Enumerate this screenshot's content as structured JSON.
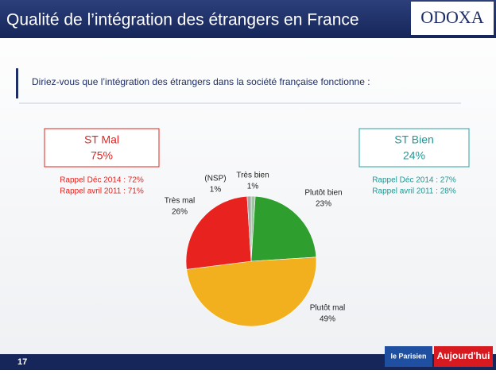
{
  "header": {
    "title": "Qualité de l’intégration des étrangers en France",
    "logo": "ODOXA"
  },
  "question": "Diriez-vous que l’intégration des étrangers dans la société française fonctionne :",
  "st_mal": {
    "label": "ST Mal",
    "value": "75%",
    "recalls": [
      "Rappel Déc 2014 : 72%",
      "Rappel avril 2011 : 71%"
    ]
  },
  "st_bien": {
    "label": "ST Bien",
    "value": "24%",
    "recalls": [
      "Rappel Déc 2014 : 27%",
      "Rappel avril 2011 : 28%"
    ]
  },
  "chart_data": {
    "type": "pie",
    "categories": [
      "Très bien",
      "Plutôt bien",
      "Plutôt mal",
      "Très mal",
      "(NSP)"
    ],
    "values": [
      1,
      23,
      49,
      26,
      1
    ],
    "value_labels": [
      "1%",
      "23%",
      "49%",
      "26%",
      "1%"
    ],
    "colors": [
      "#9cc8a0",
      "#2e9e2e",
      "#f2b01e",
      "#e8231f",
      "#a8a8a8"
    ]
  },
  "footer": {
    "page": "17",
    "logos": [
      "le Parisien",
      "Aujourd'hui"
    ]
  }
}
